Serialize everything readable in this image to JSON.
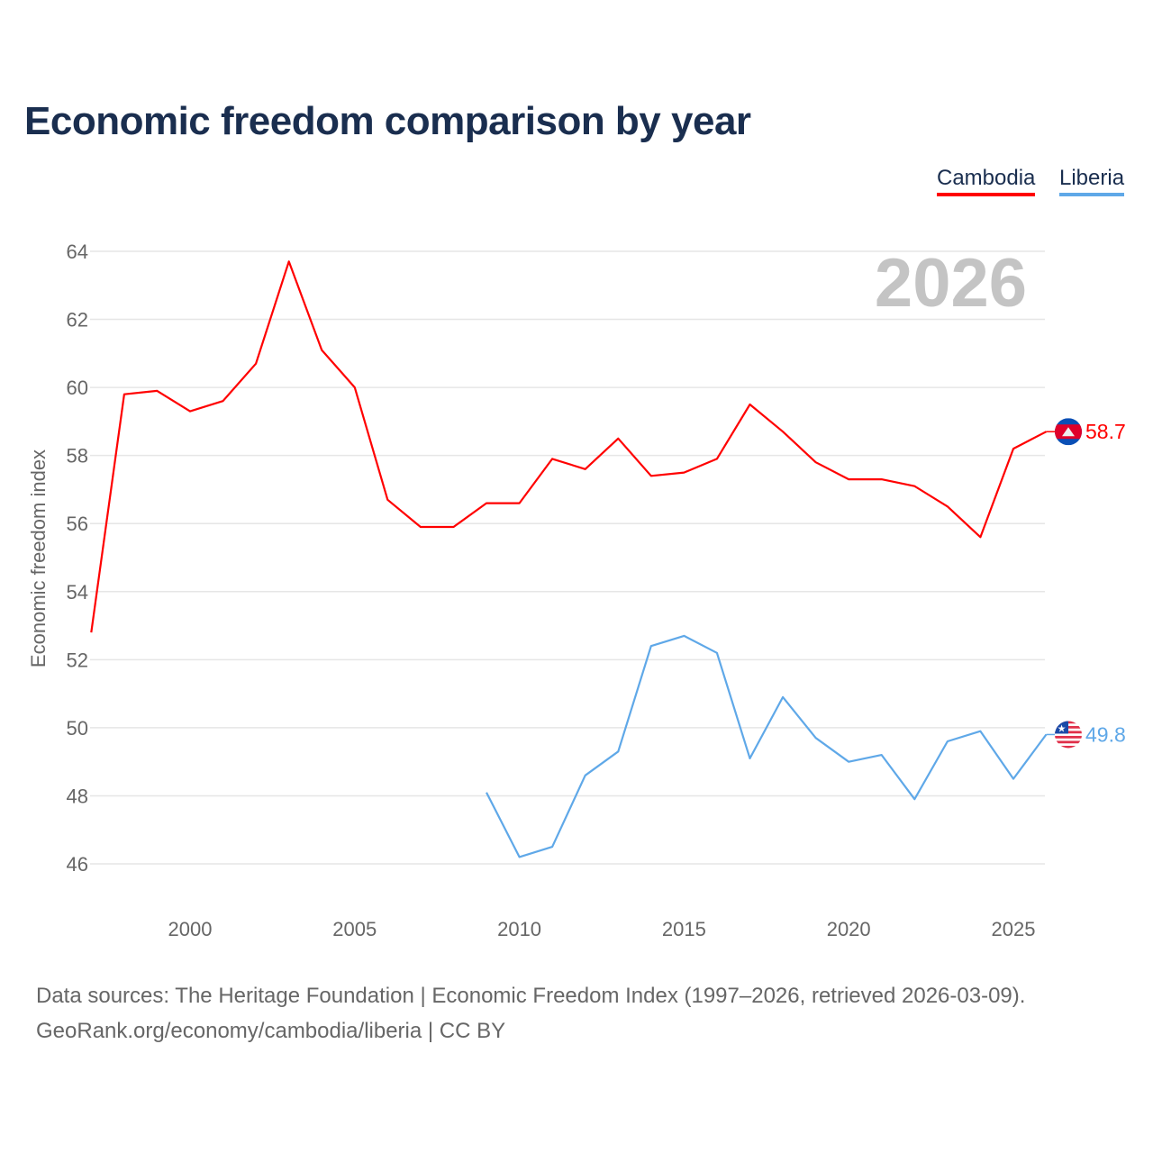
{
  "title": "Economic freedom comparison by year",
  "legend": [
    {
      "name": "Cambodia",
      "color": "#ff0000"
    },
    {
      "name": "Liberia",
      "color": "#5fa8e8"
    }
  ],
  "footer": {
    "line1": "Data sources: The Heritage Foundation | Economic Freedom Index (1997–2026, retrieved 2026-03-09).",
    "line2": "GeoRank.org/economy/cambodia/liberia | CC BY"
  },
  "chart_data": {
    "type": "line",
    "title": "Economic freedom comparison by year",
    "ylabel": "Economic freedom index",
    "xlabel": "",
    "year_watermark": "2026",
    "xlim": [
      1997,
      2026
    ],
    "ylim": [
      46,
      64
    ],
    "xticks": [
      2000,
      2005,
      2010,
      2015,
      2020,
      2025
    ],
    "yticks": [
      46,
      48,
      50,
      52,
      54,
      56,
      58,
      60,
      62,
      64
    ],
    "grid": true,
    "legend_position": "top-right",
    "series": [
      {
        "name": "Cambodia",
        "color": "#ff0000",
        "flag": "cambodia-flag",
        "end_label": "58.7",
        "x": [
          1997,
          1998,
          1999,
          2000,
          2001,
          2002,
          2003,
          2004,
          2005,
          2006,
          2007,
          2008,
          2009,
          2010,
          2011,
          2012,
          2013,
          2014,
          2015,
          2016,
          2017,
          2018,
          2019,
          2020,
          2021,
          2022,
          2023,
          2024,
          2025,
          2026
        ],
        "values": [
          52.8,
          59.8,
          59.9,
          59.3,
          59.6,
          60.7,
          63.7,
          61.1,
          60.0,
          56.7,
          55.9,
          55.9,
          56.6,
          56.6,
          57.9,
          57.6,
          58.5,
          57.4,
          57.5,
          57.9,
          59.5,
          58.7,
          57.8,
          57.3,
          57.3,
          57.1,
          56.5,
          55.6,
          58.2,
          58.7
        ]
      },
      {
        "name": "Liberia",
        "color": "#5fa8e8",
        "flag": "liberia-flag",
        "end_label": "49.8",
        "x": [
          2009,
          2010,
          2011,
          2012,
          2013,
          2014,
          2015,
          2016,
          2017,
          2018,
          2019,
          2020,
          2021,
          2022,
          2023,
          2024,
          2025,
          2026
        ],
        "values": [
          48.1,
          46.2,
          46.5,
          48.6,
          49.3,
          52.4,
          52.7,
          52.2,
          49.1,
          50.9,
          49.7,
          49.0,
          49.2,
          47.9,
          49.6,
          49.9,
          48.5,
          49.8
        ]
      }
    ]
  }
}
